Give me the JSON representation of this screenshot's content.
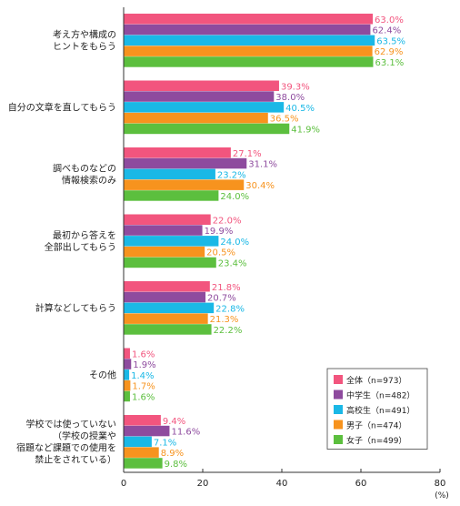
{
  "chart_data": {
    "type": "bar",
    "orientation": "horizontal",
    "categories": [
      [
        "考え方や構成の",
        "ヒントをもらう"
      ],
      [
        "自分の文章を直してもらう"
      ],
      [
        "調べものなどの",
        "情報検索のみ"
      ],
      [
        "最初から答えを",
        "全部出してもらう"
      ],
      [
        "計算などしてもらう"
      ],
      [
        "その他"
      ],
      [
        "学校では使っていない",
        "（学校の授業や",
        "宿題など課題での使用を",
        "禁止をされている）"
      ]
    ],
    "series": [
      {
        "name": "全体（n=973）",
        "color": "#f2557e",
        "values": [
          63.0,
          39.3,
          27.1,
          22.0,
          21.8,
          1.6,
          9.4
        ],
        "labels": [
          "63.0%",
          "39.3%",
          "27.1%",
          "22.0%",
          "21.8%",
          "1.6%",
          "9.4%"
        ]
      },
      {
        "name": "中学生（n=482）",
        "color": "#8e4b9e",
        "values": [
          62.4,
          38.0,
          31.1,
          19.9,
          20.7,
          1.9,
          11.6
        ],
        "labels": [
          "62.4%",
          "38.0%",
          "31.1%",
          "19.9%",
          "20.7%",
          "1.9%",
          "11.6%"
        ]
      },
      {
        "name": "高校生（n=491）",
        "color": "#1ab8e6",
        "values": [
          63.5,
          40.5,
          23.2,
          24.0,
          22.8,
          1.4,
          7.1
        ],
        "labels": [
          "63.5%",
          "40.5%",
          "23.2%",
          "24.0%",
          "22.8%",
          "1.4%",
          "7.1%"
        ]
      },
      {
        "name": "男子（n=474）",
        "color": "#f7931e",
        "values": [
          62.9,
          36.5,
          30.4,
          20.5,
          21.3,
          1.7,
          8.9
        ],
        "labels": [
          "62.9%",
          "36.5%",
          "30.4%",
          "20.5%",
          "21.3%",
          "1.7%",
          "8.9%"
        ]
      },
      {
        "name": "女子（n=499）",
        "color": "#5cbf3e",
        "values": [
          63.1,
          41.9,
          24.0,
          23.4,
          22.2,
          1.6,
          9.8
        ],
        "labels": [
          "63.1%",
          "41.9%",
          "24.0%",
          "23.4%",
          "22.2%",
          "1.6%",
          "9.8%"
        ]
      }
    ],
    "xlim": [
      0,
      80
    ],
    "xticks": [
      "0",
      "20",
      "40",
      "60",
      "80"
    ],
    "x_unit": "(%)",
    "legend_position": "bottom-right",
    "grid": false
  }
}
